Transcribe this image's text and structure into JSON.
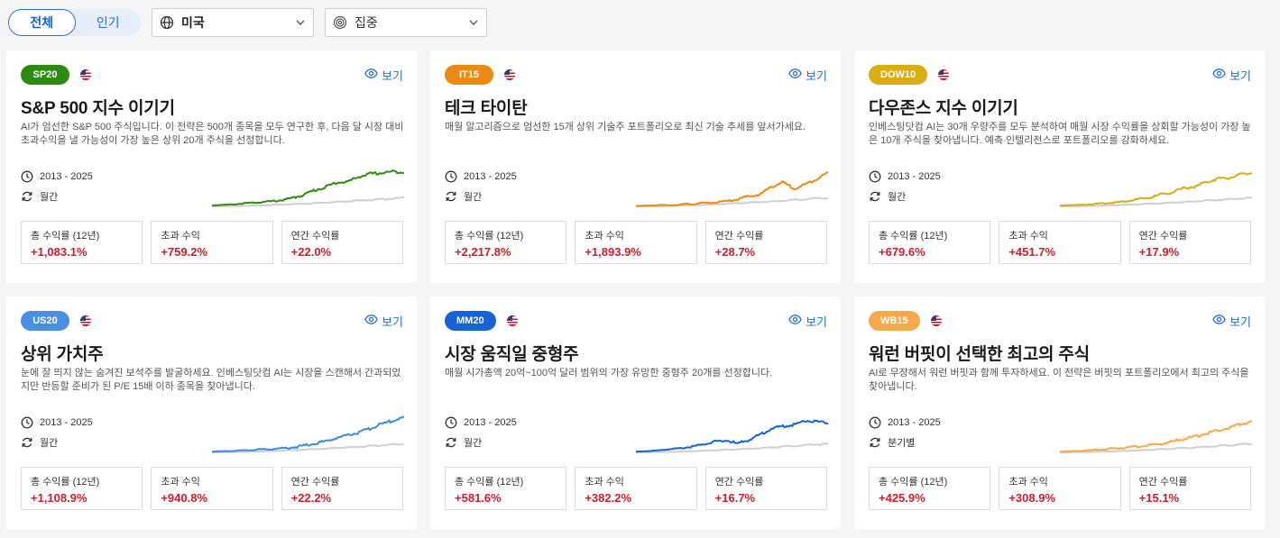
{
  "filters": {
    "tabs": [
      {
        "label": "전체",
        "active": true
      },
      {
        "label": "인기",
        "active": false
      }
    ],
    "country": "미국",
    "strategy": "집중"
  },
  "cards": [
    {
      "badge": "SP20",
      "badge_color": "#2e8a12",
      "line_color": "#2e8a12",
      "view": "보기",
      "title": "S&P 500 지수 이기기",
      "desc": "AI가 엄선한 S&P 500 주식입니다. 이 전략은 500개 종목을 모두 연구한 후, 다음 달 시장 대비 초과수익을 낼 가능성이 가장 높은 상위 20개 주식을 선정합니다.",
      "period": "2013 - 2025",
      "freq": "월간",
      "stats": [
        {
          "label": "총 수익률 (12년)",
          "value": "+1,083.1%"
        },
        {
          "label": "초과 수익",
          "value": "+759.2%"
        },
        {
          "label": "연간 수익률",
          "value": "+22.0%"
        }
      ],
      "spark": [
        0.02,
        0.04,
        0.05,
        0.08,
        0.1,
        0.12,
        0.15,
        0.2,
        0.28,
        0.4,
        0.48,
        0.6,
        0.62,
        0.75,
        0.82,
        0.84,
        0.88,
        0.86
      ]
    },
    {
      "badge": "IT15",
      "badge_color": "#ea8a10",
      "line_color": "#ea8a10",
      "view": "보기",
      "title": "테크 타이탄",
      "desc": "매월 알고리즘으로 엄선한 15개 상위 기술주 포트폴리오로 최신 기술 추세를 앞서가세요.",
      "period": "2013 - 2025",
      "freq": "월간",
      "stats": [
        {
          "label": "총 수익률 (12년)",
          "value": "+2,217.8%"
        },
        {
          "label": "초과 수익",
          "value": "+1,893.9%"
        },
        {
          "label": "연간 수익률",
          "value": "+28.7%"
        }
      ],
      "spark": [
        0.01,
        0.02,
        0.03,
        0.03,
        0.05,
        0.06,
        0.08,
        0.1,
        0.12,
        0.18,
        0.25,
        0.3,
        0.5,
        0.6,
        0.45,
        0.55,
        0.7,
        0.85
      ]
    },
    {
      "badge": "DOW10",
      "badge_color": "#d9ae12",
      "line_color": "#d4ad1b",
      "view": "보기",
      "title": "다우존스 지수 이기기",
      "desc": "인베스팅닷컴 AI는 30개 우량주를 모두 분석하여 매월 시장 수익률을 상회할 가능성이 가장 높은 10개 주식을 찾아냅니다. 예측 인텔리전스로 포트폴리오를 강화하세요.",
      "period": "2013 - 2025",
      "freq": "월간",
      "stats": [
        {
          "label": "총 수익률 (12년)",
          "value": "+679.6%"
        },
        {
          "label": "초과 수익",
          "value": "+451.7%"
        },
        {
          "label": "연간 수익률",
          "value": "+17.9%"
        }
      ],
      "spark": [
        0.02,
        0.03,
        0.04,
        0.06,
        0.08,
        0.1,
        0.14,
        0.18,
        0.22,
        0.3,
        0.36,
        0.46,
        0.5,
        0.62,
        0.7,
        0.72,
        0.8,
        0.84
      ]
    },
    {
      "badge": "US20",
      "badge_color": "#4a90e2",
      "line_color": "#3b8be0",
      "view": "보기",
      "title": "상위 가치주",
      "desc": "눈에 잘 띄지 않는 숨겨진 보석주를 발굴하세요. 인베스팅닷컴 AI는 시장을 스캔해서 간과되었지만 반등할 준비가 된 P/E 15배 이하 종목을 찾아냅니다.",
      "period": "2013 - 2025",
      "freq": "월간",
      "stats": [
        {
          "label": "총 수익률 (12년)",
          "value": "+1,108.9%"
        },
        {
          "label": "초과 수익",
          "value": "+940.8%"
        },
        {
          "label": "연간 수익률",
          "value": "+22.2%"
        }
      ],
      "spark": [
        0.02,
        0.03,
        0.04,
        0.05,
        0.07,
        0.08,
        0.1,
        0.12,
        0.16,
        0.22,
        0.28,
        0.36,
        0.44,
        0.5,
        0.6,
        0.72,
        0.8,
        0.88
      ]
    },
    {
      "badge": "MM20",
      "badge_color": "#1564d6",
      "line_color": "#1564d6",
      "view": "보기",
      "title": "시장 움직일 중형주",
      "desc": "매월 시가총액 20억~100억 달러 범위의 가장 유망한 중형주 20개를 선정합니다.",
      "period": "2013 - 2025",
      "freq": "월간",
      "stats": [
        {
          "label": "총 수익률 (12년)",
          "value": "+581.6%"
        },
        {
          "label": "초과 수익",
          "value": "+382.2%"
        },
        {
          "label": "연간 수익률",
          "value": "+16.7%"
        }
      ],
      "spark": [
        0.02,
        0.03,
        0.05,
        0.08,
        0.1,
        0.15,
        0.2,
        0.28,
        0.3,
        0.22,
        0.32,
        0.45,
        0.6,
        0.66,
        0.7,
        0.8,
        0.78,
        0.74
      ]
    },
    {
      "badge": "WB15",
      "badge_color": "#f5a94a",
      "line_color": "#f5a94a",
      "view": "보기",
      "title": "워런 버핏이 선택한 최고의 주식",
      "desc": "AI로 무장해서 워런 버핏과 함께 투자하세요. 이 전략은 버핏의 포트폴리오에서 최고의 주식을 찾아냅니다.",
      "period": "2013 - 2025",
      "freq": "분기별",
      "stats": [
        {
          "label": "총 수익률 (12년)",
          "value": "+425.9%"
        },
        {
          "label": "초과 수익",
          "value": "+308.9%"
        },
        {
          "label": "연간 수익률",
          "value": "+15.1%"
        }
      ],
      "spark": [
        0.02,
        0.03,
        0.04,
        0.06,
        0.08,
        0.1,
        0.12,
        0.15,
        0.18,
        0.22,
        0.28,
        0.34,
        0.4,
        0.48,
        0.56,
        0.62,
        0.72,
        0.78
      ]
    }
  ]
}
